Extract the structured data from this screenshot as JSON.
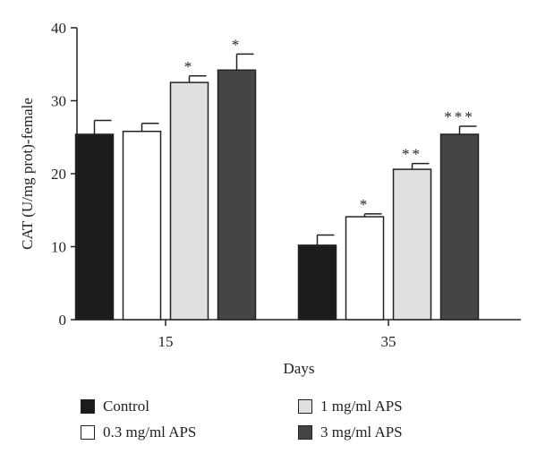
{
  "chart_data": {
    "type": "bar",
    "title": "",
    "xlabel": "Days",
    "ylabel": "CAT (U/mg prot)-female",
    "ylim": [
      0,
      40
    ],
    "yticks": [
      "0",
      "10",
      "20",
      "30",
      "40"
    ],
    "categories": [
      "15",
      "35"
    ],
    "grid": false,
    "legend_position": "bottom",
    "series": [
      {
        "name": "Control",
        "color": "#1c1c1c",
        "values": [
          25.4,
          10.2
        ],
        "errors": [
          1.9,
          1.4
        ],
        "annotations": [
          "",
          ""
        ]
      },
      {
        "name": "0.3 mg/ml APS",
        "color": "#ffffff",
        "values": [
          25.8,
          14.1
        ],
        "errors": [
          1.1,
          0.4
        ],
        "annotations": [
          "",
          "*"
        ]
      },
      {
        "name": "1 mg/ml APS",
        "color": "#e0e0e0",
        "values": [
          32.5,
          20.6
        ],
        "errors": [
          0.9,
          0.8
        ],
        "annotations": [
          "*",
          "**"
        ]
      },
      {
        "name": "3 mg/ml APS",
        "color": "#454545",
        "values": [
          34.2,
          25.4
        ],
        "errors": [
          2.2,
          1.1
        ],
        "annotations": [
          "*",
          "***"
        ]
      }
    ]
  }
}
